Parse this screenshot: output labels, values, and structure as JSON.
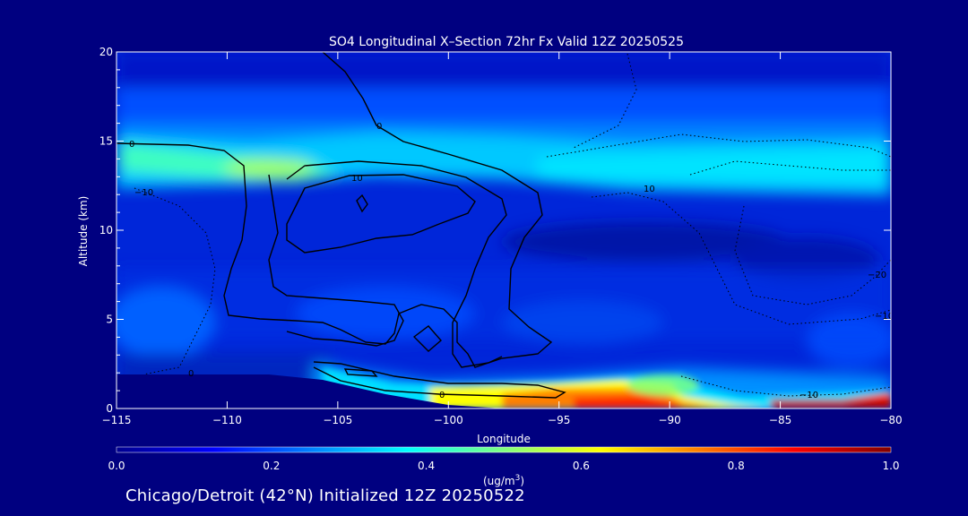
{
  "chart_data": {
    "type": "heatmap",
    "title": "SO4 Longitudinal X–Section 72hr  Fx Valid 12Z 20250525",
    "xlabel": "Longitude",
    "ylabel": "Altitude (km)",
    "xlim": [
      -115,
      -80
    ],
    "ylim": [
      0,
      20
    ],
    "x_ticks": [
      -115,
      -110,
      -105,
      -100,
      -95,
      -90,
      -85,
      -80
    ],
    "x_tick_labels": [
      "−115",
      "−110",
      "−105",
      "−100",
      "−95",
      "−90",
      "−85",
      "−80"
    ],
    "y_ticks": [
      0,
      5,
      10,
      15,
      20
    ],
    "colorbar": {
      "min": 0.0,
      "max": 1.0,
      "ticks": [
        "0.0",
        "0.2",
        "0.4",
        "0.6",
        "0.8",
        "1.0"
      ],
      "unit_label": "(ug/m",
      "unit_sup": "3",
      "unit_close": ")",
      "colors": [
        "#00008f",
        "#0000ff",
        "#0080ff",
        "#00ffff",
        "#80ff80",
        "#ffff00",
        "#ff8000",
        "#ff0000",
        "#800000"
      ]
    },
    "features": [
      {
        "name": "upper-layer",
        "lon_range": [
          -115,
          -80
        ],
        "alt": 14.5,
        "concentration": 0.35
      },
      {
        "name": "upper-layer-peak",
        "lon": -109,
        "alt": 13.5,
        "concentration": 0.5
      },
      {
        "name": "surface-plume",
        "lon_range": [
          -98,
          -88
        ],
        "alt": 0.7,
        "concentration": 0.9
      },
      {
        "name": "surface-plume-east",
        "lon_range": [
          -84,
          -80
        ],
        "alt": 0.4,
        "concentration": 0.95
      }
    ],
    "contour_labels": [
      "0",
      "−10",
      "10",
      "0",
      "10",
      "0",
      "−10",
      "−20",
      "−10",
      "0"
    ]
  },
  "footer": "Chicago/Detroit (42°N) Initialized 12Z 20250522"
}
